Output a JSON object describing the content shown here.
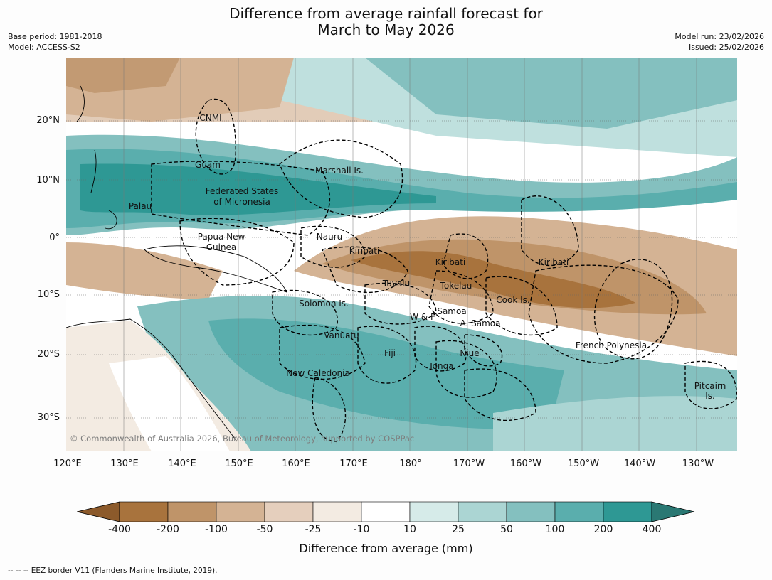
{
  "title_line1": "Difference from average rainfall forecast for",
  "title_line2": "March to May 2026",
  "base_period": "Base period: 1981-2018",
  "model": "Model: ACCESS-S2",
  "model_run": "Model run: 23/02/2026",
  "issued": "Issued: 25/02/2026",
  "lat_labels": [
    "20°N",
    "10°N",
    "0°",
    "10°S",
    "20°S",
    "30°S"
  ],
  "lon_labels": [
    "120°E",
    "130°E",
    "140°E",
    "150°E",
    "160°E",
    "170°E",
    "180°",
    "170°W",
    "160°W",
    "150°W",
    "140°W",
    "130°W"
  ],
  "regions": {
    "cnmi": "CNMI",
    "guam": "Guam",
    "marshall": "Marshall Is.",
    "fsm1": "Federated States",
    "fsm2": "of Micronesia",
    "palau": "Palau",
    "png1": "Papua New",
    "png2": "Guinea",
    "nauru": "Nauru",
    "kiribati_w": "Kiribati",
    "kiribati_c": "Kiribati",
    "kiribati_e": "Kiribati",
    "tuvalu": "Tuvalu",
    "tokelau": "Tokelau",
    "cook": "Cook Is.",
    "solomon": "Solomon Is.",
    "wf": "W & F",
    "samoa": "Samoa",
    "asamoa": "A. Samoa",
    "vanuatu": "Vanuatu",
    "fiji": "Fiji",
    "niue": "Niue",
    "tonga": "Tonga",
    "french_polynesia": "French Polynesia",
    "newcal": "New Caledonia",
    "pitcairn1": "Pitcairn",
    "pitcairn2": "Is."
  },
  "copyright": "© Commonwealth of Australia 2026, Bureau of Meteorology, supported by COSPPac",
  "colorbar": {
    "ticks": [
      "-400",
      "-200",
      "-100",
      "-50",
      "-25",
      "-10",
      "10",
      "25",
      "50",
      "100",
      "200",
      "400"
    ],
    "colors": [
      "#8c5a2b",
      "#a8733d",
      "#bf9469",
      "#d4b394",
      "#e5cfbd",
      "#f3ebe2",
      "#ffffff",
      "#d6ebe9",
      "#abd5d3",
      "#84c0bf",
      "#5aaead",
      "#2e9894",
      "#2a7873"
    ],
    "label": "Difference from average (mm)"
  },
  "footer": "-- -- -- EEZ border V11 (Flanders Marine Institute, 2019)."
}
